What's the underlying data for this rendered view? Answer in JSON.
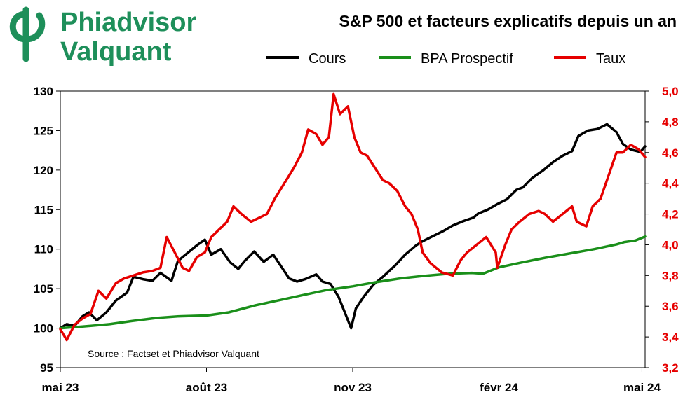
{
  "brand": {
    "line1": "Phiadvisor",
    "line2": "Valquant",
    "color": "#1e8f5a"
  },
  "chart_data": {
    "type": "line",
    "title": "S&P 500 et facteurs explicatifs depuis un an",
    "source": "Source : Factset et Phiadvisor Valquant",
    "legend_position": "top",
    "x_ticks": [
      "mai 23",
      "août 23",
      "nov 23",
      "févr 24",
      "mai 24"
    ],
    "x_tick_dates": [
      "2023-05-01",
      "2023-08-01",
      "2023-11-01",
      "2024-02-01",
      "2024-05-01"
    ],
    "x_range": [
      "2023-05-01",
      "2024-05-03"
    ],
    "y_left": {
      "range": [
        95,
        130
      ],
      "ticks": [
        "95",
        "100",
        "105",
        "110",
        "115",
        "120",
        "125",
        "130"
      ]
    },
    "y_right": {
      "range": [
        3.2,
        5.0
      ],
      "ticks": [
        "3,2",
        "3,4",
        "3,6",
        "3,8",
        "4,0",
        "4,2",
        "4,4",
        "4,6",
        "4,8",
        "5,0"
      ],
      "color": "#e60000"
    },
    "grid": false,
    "series": [
      {
        "name": "Cours",
        "axis": "left",
        "color": "#000000",
        "points": [
          [
            "2023-05-01",
            100
          ],
          [
            "2023-05-05",
            100.5
          ],
          [
            "2023-05-10",
            100.3
          ],
          [
            "2023-05-15",
            101.5
          ],
          [
            "2023-05-19",
            102
          ],
          [
            "2023-05-24",
            101
          ],
          [
            "2023-05-30",
            102
          ],
          [
            "2023-06-05",
            103.5
          ],
          [
            "2023-06-12",
            104.5
          ],
          [
            "2023-06-16",
            106.5
          ],
          [
            "2023-06-22",
            106.2
          ],
          [
            "2023-06-28",
            106
          ],
          [
            "2023-07-03",
            107
          ],
          [
            "2023-07-10",
            106
          ],
          [
            "2023-07-14",
            108.5
          ],
          [
            "2023-07-20",
            109.5
          ],
          [
            "2023-07-26",
            110.5
          ],
          [
            "2023-07-31",
            111.2
          ],
          [
            "2023-08-04",
            109.3
          ],
          [
            "2023-08-10",
            110
          ],
          [
            "2023-08-16",
            108.3
          ],
          [
            "2023-08-21",
            107.5
          ],
          [
            "2023-08-25",
            108.5
          ],
          [
            "2023-08-31",
            109.7
          ],
          [
            "2023-09-06",
            108.4
          ],
          [
            "2023-09-12",
            109.3
          ],
          [
            "2023-09-18",
            107.5
          ],
          [
            "2023-09-22",
            106.3
          ],
          [
            "2023-09-27",
            105.9
          ],
          [
            "2023-10-02",
            106.2
          ],
          [
            "2023-10-09",
            106.8
          ],
          [
            "2023-10-13",
            105.9
          ],
          [
            "2023-10-18",
            105.6
          ],
          [
            "2023-10-23",
            104
          ],
          [
            "2023-10-27",
            102
          ],
          [
            "2023-10-31",
            100
          ],
          [
            "2023-11-03",
            102.5
          ],
          [
            "2023-11-08",
            104
          ],
          [
            "2023-11-14",
            105.5
          ],
          [
            "2023-11-20",
            106.5
          ],
          [
            "2023-11-28",
            108
          ],
          [
            "2023-12-04",
            109.3
          ],
          [
            "2023-12-11",
            110.5
          ],
          [
            "2023-12-15",
            111
          ],
          [
            "2023-12-20",
            111.5
          ],
          [
            "2023-12-28",
            112.3
          ],
          [
            "2024-01-03",
            113
          ],
          [
            "2024-01-09",
            113.5
          ],
          [
            "2024-01-16",
            114
          ],
          [
            "2024-01-19",
            114.5
          ],
          [
            "2024-01-25",
            115
          ],
          [
            "2024-01-31",
            115.7
          ],
          [
            "2024-02-06",
            116.3
          ],
          [
            "2024-02-12",
            117.5
          ],
          [
            "2024-02-16",
            117.8
          ],
          [
            "2024-02-22",
            119
          ],
          [
            "2024-02-29",
            120
          ],
          [
            "2024-03-06",
            121
          ],
          [
            "2024-03-12",
            121.8
          ],
          [
            "2024-03-18",
            122.4
          ],
          [
            "2024-03-22",
            124.3
          ],
          [
            "2024-03-28",
            125
          ],
          [
            "2024-04-03",
            125.2
          ],
          [
            "2024-04-09",
            125.8
          ],
          [
            "2024-04-15",
            124.8
          ],
          [
            "2024-04-19",
            123.3
          ],
          [
            "2024-04-24",
            122.6
          ],
          [
            "2024-04-30",
            122.3
          ],
          [
            "2024-05-03",
            123
          ]
        ]
      },
      {
        "name": "BPA Prospectif",
        "axis": "left",
        "color": "#1a8f1a",
        "points": [
          [
            "2023-05-01",
            100
          ],
          [
            "2023-05-15",
            100.2
          ],
          [
            "2023-06-01",
            100.5
          ],
          [
            "2023-06-15",
            100.9
          ],
          [
            "2023-07-01",
            101.3
          ],
          [
            "2023-07-15",
            101.5
          ],
          [
            "2023-08-01",
            101.6
          ],
          [
            "2023-08-15",
            102
          ],
          [
            "2023-09-01",
            102.9
          ],
          [
            "2023-09-15",
            103.5
          ],
          [
            "2023-10-01",
            104.2
          ],
          [
            "2023-10-15",
            104.8
          ],
          [
            "2023-11-01",
            105.3
          ],
          [
            "2023-11-15",
            105.8
          ],
          [
            "2023-12-01",
            106.3
          ],
          [
            "2023-12-15",
            106.6
          ],
          [
            "2024-01-01",
            106.9
          ],
          [
            "2024-01-15",
            107
          ],
          [
            "2024-01-22",
            106.9
          ],
          [
            "2024-02-01",
            107.7
          ],
          [
            "2024-02-15",
            108.3
          ],
          [
            "2024-03-01",
            108.9
          ],
          [
            "2024-03-15",
            109.4
          ],
          [
            "2024-04-01",
            110
          ],
          [
            "2024-04-08",
            110.3
          ],
          [
            "2024-04-15",
            110.6
          ],
          [
            "2024-04-20",
            110.9
          ],
          [
            "2024-04-27",
            111.1
          ],
          [
            "2024-05-03",
            111.6
          ]
        ]
      },
      {
        "name": "Taux",
        "axis": "right",
        "color": "#e60000",
        "points": [
          [
            "2023-05-01",
            3.45
          ],
          [
            "2023-05-05",
            3.38
          ],
          [
            "2023-05-10",
            3.48
          ],
          [
            "2023-05-15",
            3.52
          ],
          [
            "2023-05-20",
            3.55
          ],
          [
            "2023-05-25",
            3.7
          ],
          [
            "2023-05-30",
            3.65
          ],
          [
            "2023-06-05",
            3.75
          ],
          [
            "2023-06-10",
            3.78
          ],
          [
            "2023-06-16",
            3.8
          ],
          [
            "2023-06-22",
            3.82
          ],
          [
            "2023-06-28",
            3.83
          ],
          [
            "2023-07-03",
            3.85
          ],
          [
            "2023-07-07",
            4.05
          ],
          [
            "2023-07-12",
            3.95
          ],
          [
            "2023-07-17",
            3.85
          ],
          [
            "2023-07-21",
            3.83
          ],
          [
            "2023-07-26",
            3.92
          ],
          [
            "2023-07-31",
            3.95
          ],
          [
            "2023-08-04",
            4.05
          ],
          [
            "2023-08-09",
            4.1
          ],
          [
            "2023-08-14",
            4.15
          ],
          [
            "2023-08-18",
            4.25
          ],
          [
            "2023-08-23",
            4.2
          ],
          [
            "2023-08-29",
            4.15
          ],
          [
            "2023-09-04",
            4.18
          ],
          [
            "2023-09-08",
            4.2
          ],
          [
            "2023-09-13",
            4.3
          ],
          [
            "2023-09-19",
            4.4
          ],
          [
            "2023-09-25",
            4.5
          ],
          [
            "2023-09-30",
            4.6
          ],
          [
            "2023-10-04",
            4.75
          ],
          [
            "2023-10-09",
            4.72
          ],
          [
            "2023-10-13",
            4.65
          ],
          [
            "2023-10-17",
            4.7
          ],
          [
            "2023-10-20",
            4.98
          ],
          [
            "2023-10-24",
            4.85
          ],
          [
            "2023-10-29",
            4.9
          ],
          [
            "2023-11-02",
            4.7
          ],
          [
            "2023-11-06",
            4.6
          ],
          [
            "2023-11-10",
            4.58
          ],
          [
            "2023-11-15",
            4.5
          ],
          [
            "2023-11-20",
            4.42
          ],
          [
            "2023-11-24",
            4.4
          ],
          [
            "2023-11-29",
            4.35
          ],
          [
            "2023-12-04",
            4.25
          ],
          [
            "2023-12-08",
            4.2
          ],
          [
            "2023-12-12",
            4.1
          ],
          [
            "2023-12-15",
            3.95
          ],
          [
            "2023-12-20",
            3.88
          ],
          [
            "2023-12-27",
            3.82
          ],
          [
            "2024-01-03",
            3.8
          ],
          [
            "2024-01-08",
            3.9
          ],
          [
            "2024-01-12",
            3.95
          ],
          [
            "2024-01-18",
            4.0
          ],
          [
            "2024-01-24",
            4.05
          ],
          [
            "2024-01-30",
            3.95
          ],
          [
            "2024-01-31",
            3.85
          ],
          [
            "2024-02-05",
            4.0
          ],
          [
            "2024-02-09",
            4.1
          ],
          [
            "2024-02-14",
            4.15
          ],
          [
            "2024-02-20",
            4.2
          ],
          [
            "2024-02-26",
            4.22
          ],
          [
            "2024-03-01",
            4.2
          ],
          [
            "2024-03-06",
            4.15
          ],
          [
            "2024-03-12",
            4.2
          ],
          [
            "2024-03-18",
            4.25
          ],
          [
            "2024-03-21",
            4.15
          ],
          [
            "2024-03-27",
            4.12
          ],
          [
            "2024-03-31",
            4.25
          ],
          [
            "2024-04-05",
            4.3
          ],
          [
            "2024-04-10",
            4.45
          ],
          [
            "2024-04-15",
            4.6
          ],
          [
            "2024-04-19",
            4.6
          ],
          [
            "2024-04-24",
            4.65
          ],
          [
            "2024-04-29",
            4.62
          ],
          [
            "2024-05-03",
            4.57
          ]
        ]
      }
    ]
  }
}
